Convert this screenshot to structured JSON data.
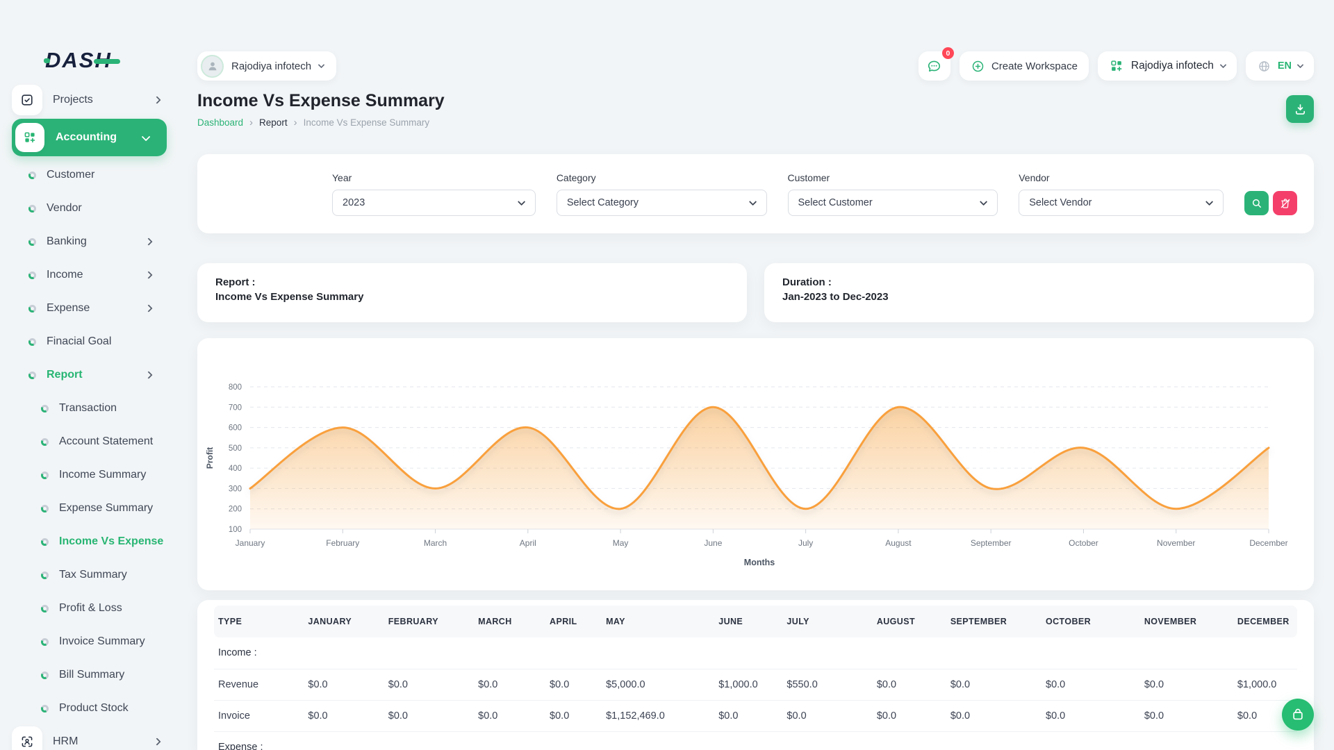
{
  "brand": {
    "logo_text": "DASH"
  },
  "sidebar": {
    "items": [
      {
        "id": "projects",
        "label": "Projects",
        "kind": "top",
        "icon": "checkbox-icon",
        "chevron": "right"
      },
      {
        "id": "accounting",
        "label": "Accounting",
        "kind": "pill",
        "icon": "grid-plus-icon",
        "chevron": "down",
        "active": true
      },
      {
        "id": "customer",
        "label": "Customer",
        "kind": "sub1"
      },
      {
        "id": "vendor",
        "label": "Vendor",
        "kind": "sub1"
      },
      {
        "id": "banking",
        "label": "Banking",
        "kind": "sub1",
        "chevron": "right"
      },
      {
        "id": "income",
        "label": "Income",
        "kind": "sub1",
        "chevron": "right"
      },
      {
        "id": "expense",
        "label": "Expense",
        "kind": "sub1",
        "chevron": "right"
      },
      {
        "id": "finacial-goal",
        "label": "Finacial Goal",
        "kind": "sub1"
      },
      {
        "id": "report",
        "label": "Report",
        "kind": "sub1",
        "chevron": "right",
        "active": true
      },
      {
        "id": "transaction",
        "label": "Transaction",
        "kind": "sub2"
      },
      {
        "id": "account-statement",
        "label": "Account Statement",
        "kind": "sub2"
      },
      {
        "id": "income-summary",
        "label": "Income Summary",
        "kind": "sub2"
      },
      {
        "id": "expense-summary",
        "label": "Expense Summary",
        "kind": "sub2"
      },
      {
        "id": "income-vs-expense",
        "label": "Income Vs Expense",
        "kind": "sub2",
        "active": true
      },
      {
        "id": "tax-summary",
        "label": "Tax Summary",
        "kind": "sub2"
      },
      {
        "id": "profit-loss",
        "label": "Profit & Loss",
        "kind": "sub2"
      },
      {
        "id": "invoice-summary",
        "label": "Invoice Summary",
        "kind": "sub2"
      },
      {
        "id": "bill-summary",
        "label": "Bill Summary",
        "kind": "sub2"
      },
      {
        "id": "product-stock",
        "label": "Product Stock",
        "kind": "sub2"
      },
      {
        "id": "hrm",
        "label": "HRM",
        "kind": "top",
        "icon": "hrm-icon",
        "chevron": "right"
      }
    ]
  },
  "header": {
    "workspace_name": "Rajodiya infotech",
    "chat_badge": "0",
    "create_workspace_label": "Create Workspace",
    "org_name": "Rajodiya infotech",
    "language": "EN"
  },
  "page": {
    "title": "Income Vs Expense Summary",
    "breadcrumb": {
      "root": "Dashboard",
      "mid": "Report",
      "current": "Income Vs Expense Summary"
    }
  },
  "filters": {
    "fields": [
      {
        "label": "Year",
        "value": "2023"
      },
      {
        "label": "Category",
        "value": "Select Category"
      },
      {
        "label": "Customer",
        "value": "Select Customer"
      },
      {
        "label": "Vendor",
        "value": "Select Vendor"
      }
    ]
  },
  "info_cards": {
    "report_label": "Report :",
    "report_value": "Income Vs Expense Summary",
    "duration_label": "Duration :",
    "duration_value": "Jan-2023 to Dec-2023"
  },
  "chart_data": {
    "type": "area",
    "x": [
      "January",
      "February",
      "March",
      "April",
      "May",
      "June",
      "July",
      "August",
      "September",
      "October",
      "November",
      "December"
    ],
    "series": [
      {
        "name": "Profit",
        "values": [
          300,
          600,
          300,
          600,
          200,
          700,
          200,
          700,
          300,
          500,
          200,
          500
        ]
      }
    ],
    "xlabel": "Months",
    "ylabel": "Profit",
    "yticks": [
      800,
      700,
      600,
      500,
      400,
      300,
      200,
      100
    ],
    "ylim": [
      100,
      800
    ],
    "grid": "horizontal-dashed",
    "legend": "none",
    "line_color": "#f9a03c",
    "fill_color": "#f6a546"
  },
  "table": {
    "headers": [
      "TYPE",
      "JANUARY",
      "FEBRUARY",
      "MARCH",
      "APRIL",
      "MAY",
      "JUNE",
      "JULY",
      "AUGUST",
      "SEPTEMBER",
      "OCTOBER",
      "NOVEMBER",
      "DECEMBER"
    ],
    "sections": [
      {
        "title": "Income :",
        "rows": [
          {
            "type": "Revenue",
            "values": [
              "$0.0",
              "$0.0",
              "$0.0",
              "$0.0",
              "$5,000.0",
              "$1,000.0",
              "$550.0",
              "$0.0",
              "$0.0",
              "$0.0",
              "$0.0",
              "$1,000.0"
            ]
          },
          {
            "type": "Invoice",
            "values": [
              "$0.0",
              "$0.0",
              "$0.0",
              "$0.0",
              "$1,152,469.0",
              "$0.0",
              "$0.0",
              "$0.0",
              "$0.0",
              "$0.0",
              "$0.0",
              "$0.0"
            ]
          }
        ]
      },
      {
        "title": "Expense :",
        "rows": []
      }
    ]
  },
  "colors": {
    "primary_green": "#2BB377",
    "pink": "#F43F6B",
    "badge_red": "#FF4757",
    "chart_orange": "#f9a03c"
  }
}
